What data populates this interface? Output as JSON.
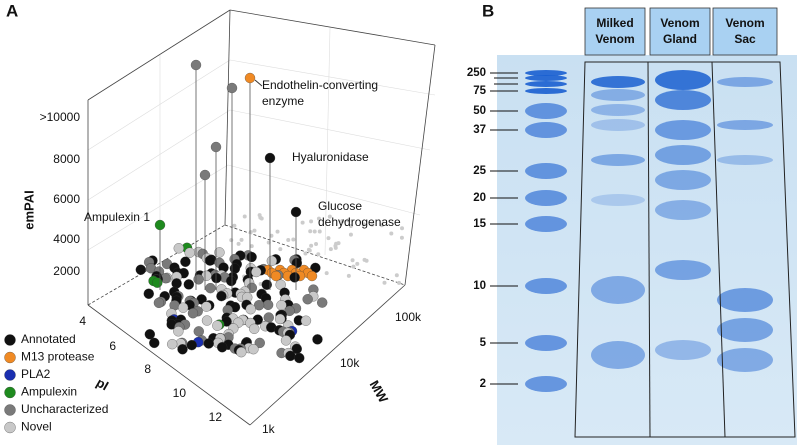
{
  "panel_a": {
    "label": "A",
    "z_axis": {
      "title": "emPAI",
      "ticks": [
        "2000",
        "4000",
        "6000",
        "8000",
        ">10000"
      ]
    },
    "x_axis": {
      "title": "pI",
      "ticks": [
        "4",
        "6",
        "8",
        "10",
        "12"
      ]
    },
    "y_axis": {
      "title": "MW",
      "ticks": [
        "1k",
        "10k",
        "100k"
      ]
    },
    "annotations": [
      {
        "lines": [
          "Endothelin-converting",
          "enzyme"
        ]
      },
      {
        "lines": [
          "Hyaluronidase"
        ]
      },
      {
        "lines": [
          "Glucose",
          "dehydrogenase"
        ]
      },
      {
        "lines": [
          "Ampulexin 1"
        ]
      }
    ],
    "legend": [
      {
        "label": "Annotated",
        "color": "#111111"
      },
      {
        "label": "M13 protease",
        "color": "#f08a24"
      },
      {
        "label": "PLA2",
        "color": "#1a2fb0"
      },
      {
        "label": "Ampulexin",
        "color": "#1e8a1e"
      },
      {
        "label": "Uncharacterized",
        "color": "#7a7a7a"
      },
      {
        "label": "Novel",
        "color": "#c8c8c8"
      }
    ]
  },
  "panel_b": {
    "label": "B",
    "lanes": [
      [
        "Milked",
        "Venom"
      ],
      [
        "Venom",
        "Gland"
      ],
      [
        "Venom",
        "Sac"
      ]
    ],
    "markers": [
      "250",
      "75",
      "50",
      "37",
      "25",
      "20",
      "15",
      "10",
      "5",
      "2"
    ]
  }
}
